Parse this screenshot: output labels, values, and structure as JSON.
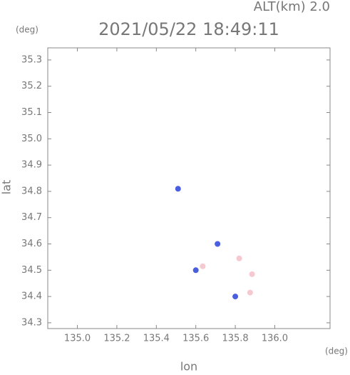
{
  "chart_data": {
    "type": "scatter",
    "header": "ALT(km) 2.0",
    "title": "2021/05/22 18:49:11",
    "y_unit": "(deg)",
    "x_unit": "(deg)",
    "x_label": "lon",
    "y_label": "lat",
    "x": [
      135.51,
      135.71,
      135.6,
      135.635,
      135.82,
      135.885,
      135.8,
      135.875
    ],
    "values": [
      34.81,
      34.6,
      34.5,
      34.515,
      34.545,
      34.485,
      34.4,
      34.415
    ],
    "colors": [
      "#4a5ee0",
      "#4a5ee0",
      "#4a5ee0",
      "#f6c8d0",
      "#f6c8d0",
      "#f6c8d0",
      "#4a5ee0",
      "#f6c8d0"
    ],
    "xlim": [
      134.85,
      136.28
    ],
    "ylim": [
      34.278,
      35.346
    ],
    "xticks": [
      {
        "value": 135,
        "label": "135.0"
      },
      135.2,
      135.4,
      135.6,
      135.8,
      {
        "value": 136,
        "label": "136.0"
      }
    ],
    "yticks": [
      35.3,
      35.2,
      35.1,
      {
        "value": 35,
        "label": "35.0"
      },
      34.9,
      34.8,
      34.7,
      34.6,
      34.5,
      34.4,
      34.3
    ],
    "grid": false
  }
}
